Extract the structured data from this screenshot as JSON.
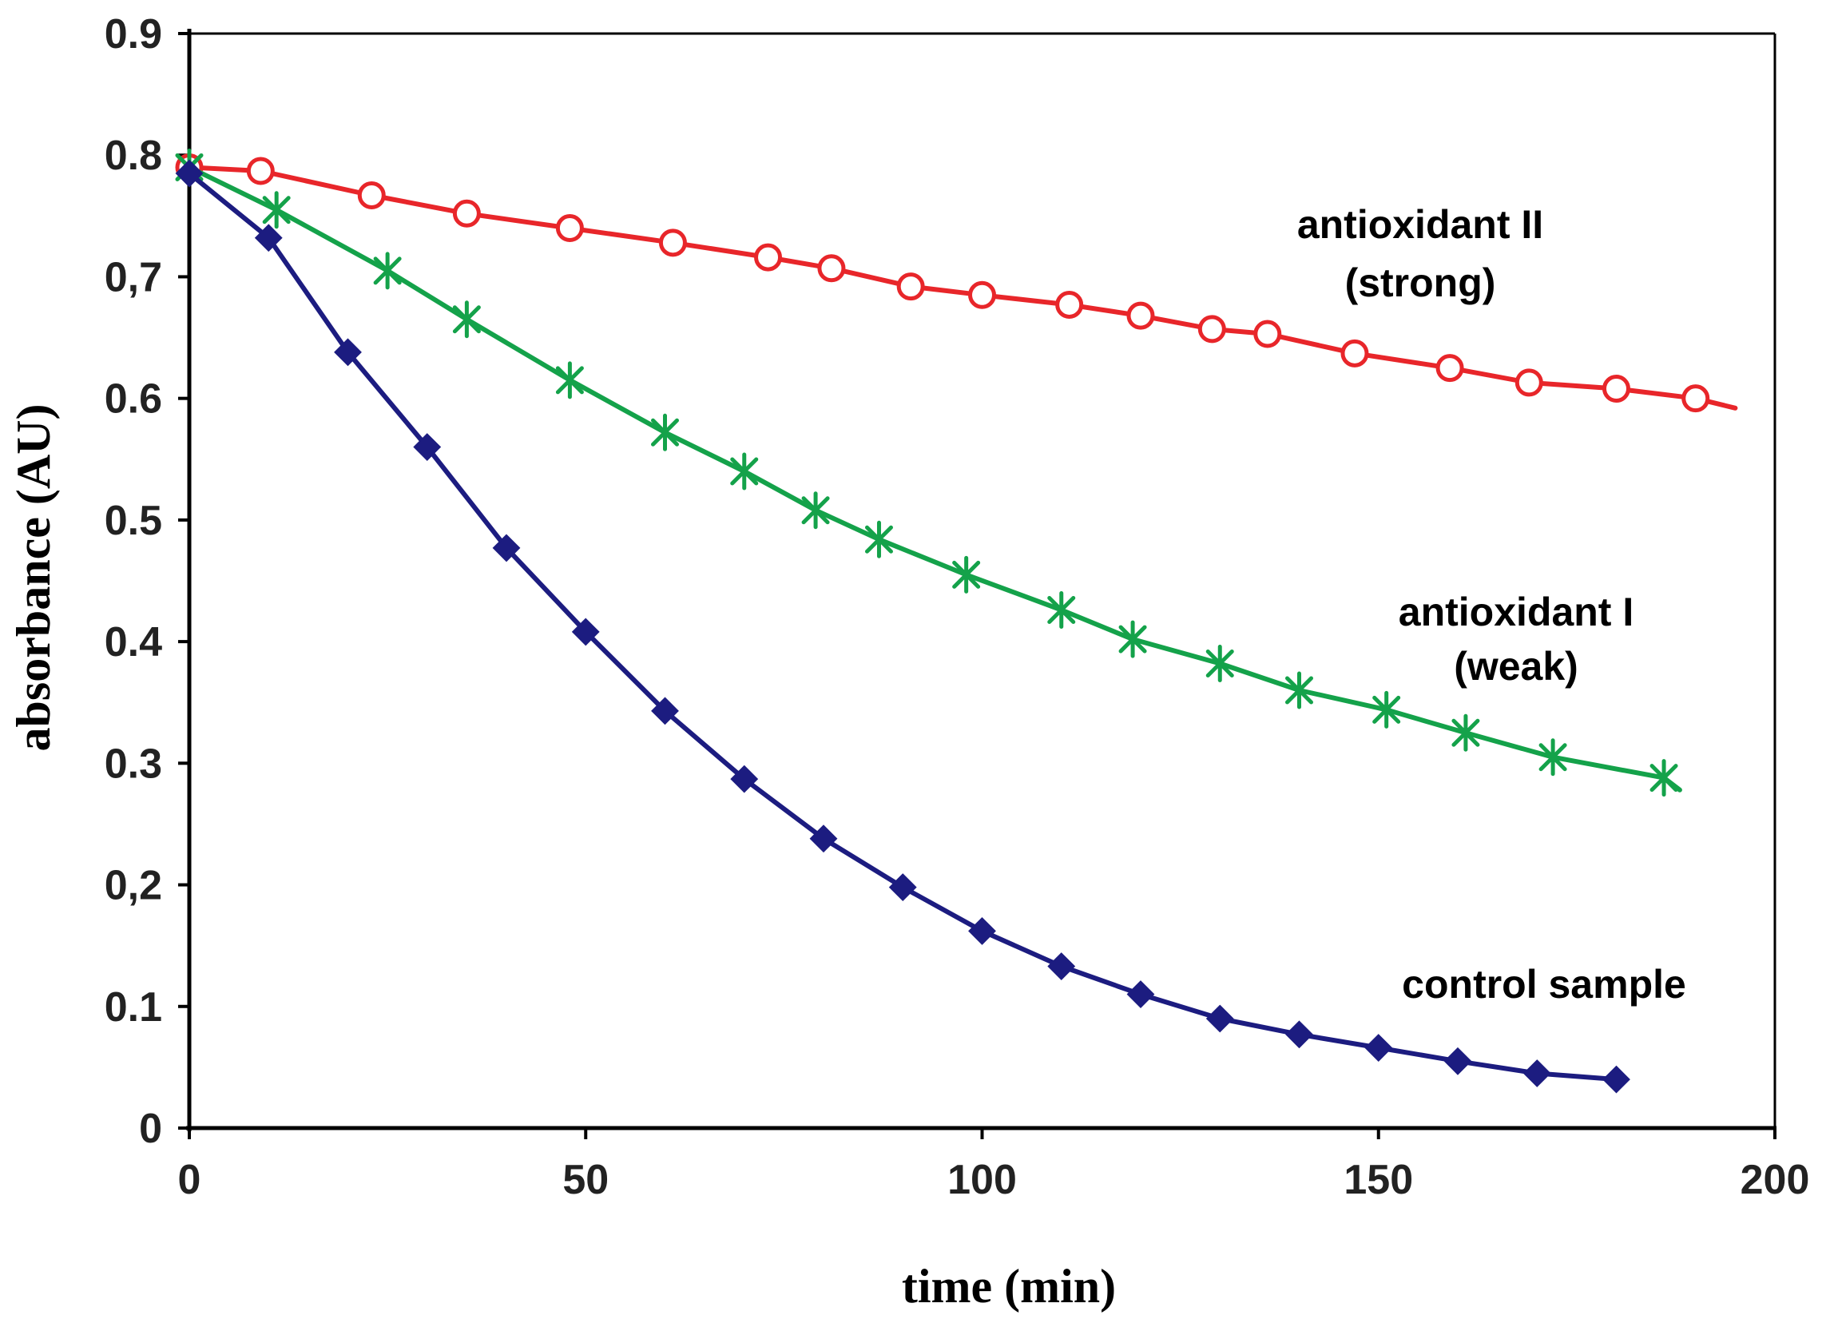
{
  "chart_data": {
    "type": "line",
    "title": "",
    "xlabel": "time (min)",
    "ylabel": "absorbance (AU)",
    "xlim": [
      0,
      200
    ],
    "ylim": [
      0,
      0.9
    ],
    "x_ticks": [
      "0",
      "50",
      "100",
      "150",
      "200"
    ],
    "y_ticks": [
      "0",
      "0.1",
      "0,2",
      "0.3",
      "0.4",
      "0.5",
      "0.6",
      "0,7",
      "0.8",
      "0.9"
    ],
    "grid": false,
    "series": [
      {
        "name": "antioxidant II (strong)",
        "label_lines": [
          "antioxidant II",
          "(strong)"
        ],
        "color": "#e8262a",
        "marker": "open-circle",
        "line_end": [
          195,
          0.592
        ],
        "points": [
          [
            0,
            0.79
          ],
          [
            9,
            0.787
          ],
          [
            23,
            0.767
          ],
          [
            35,
            0.752
          ],
          [
            48,
            0.74
          ],
          [
            61,
            0.728
          ],
          [
            73,
            0.716
          ],
          [
            81,
            0.707
          ],
          [
            91,
            0.692
          ],
          [
            100,
            0.685
          ],
          [
            111,
            0.677
          ],
          [
            120,
            0.668
          ],
          [
            129,
            0.657
          ],
          [
            136,
            0.653
          ],
          [
            147,
            0.637
          ],
          [
            159,
            0.625
          ],
          [
            169,
            0.613
          ],
          [
            180,
            0.608
          ],
          [
            190,
            0.6
          ]
        ]
      },
      {
        "name": "antioxidant I (weak)",
        "label_lines": [
          "antioxidant I",
          "(weak)"
        ],
        "color": "#14a24a",
        "marker": "star",
        "line_end": [
          188,
          0.278
        ],
        "points": [
          [
            0,
            0.79
          ],
          [
            11,
            0.755
          ],
          [
            25,
            0.705
          ],
          [
            35,
            0.665
          ],
          [
            48,
            0.615
          ],
          [
            60,
            0.572
          ],
          [
            70,
            0.54
          ],
          [
            79,
            0.508
          ],
          [
            87,
            0.484
          ],
          [
            98,
            0.455
          ],
          [
            110,
            0.426
          ],
          [
            119,
            0.402
          ],
          [
            130,
            0.382
          ],
          [
            140,
            0.36
          ],
          [
            151,
            0.344
          ],
          [
            161,
            0.325
          ],
          [
            172,
            0.305
          ],
          [
            186,
            0.288
          ]
        ]
      },
      {
        "name": "control sample",
        "label_lines": [
          "control sample"
        ],
        "color": "#1c1c80",
        "marker": "diamond",
        "line_end": [
          181,
          0.04
        ],
        "points": [
          [
            0,
            0.785
          ],
          [
            10,
            0.732
          ],
          [
            20,
            0.638
          ],
          [
            30,
            0.56
          ],
          [
            40,
            0.477
          ],
          [
            50,
            0.408
          ],
          [
            60,
            0.343
          ],
          [
            70,
            0.287
          ],
          [
            80,
            0.238
          ],
          [
            90,
            0.198
          ],
          [
            100,
            0.162
          ],
          [
            110,
            0.133
          ],
          [
            120,
            0.11
          ],
          [
            130,
            0.09
          ],
          [
            140,
            0.077
          ],
          [
            150,
            0.066
          ],
          [
            160,
            0.055
          ],
          [
            170,
            0.045
          ],
          [
            180,
            0.04
          ]
        ]
      }
    ]
  }
}
